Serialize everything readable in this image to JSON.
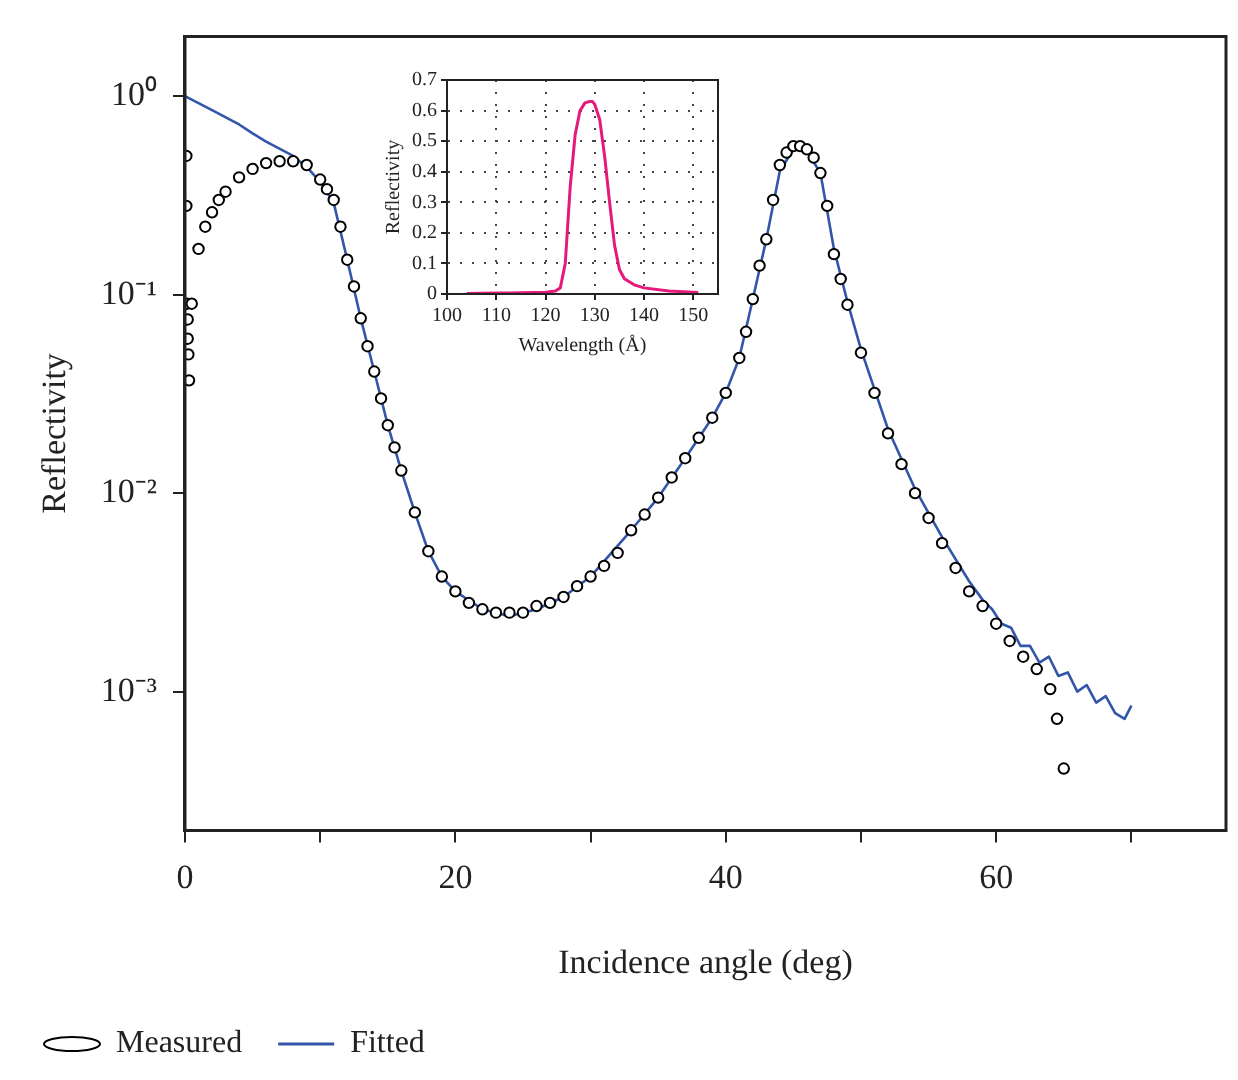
{
  "chart_data": [
    {
      "type": "line",
      "xlabel": "Incidence angle (deg)",
      "ylabel": "Reflectivity",
      "log": "y",
      "xlim": [
        0,
        77
      ],
      "ylim": [
        0.0002,
        2
      ],
      "xticks": [
        0,
        {
          "value": 10,
          "label": null
        },
        20,
        {
          "value": 30,
          "label": null
        },
        40,
        {
          "value": 50,
          "label": null
        },
        60,
        {
          "value": 70,
          "label": null
        }
      ],
      "yticks": [
        {
          "value": 1,
          "label": "10⁰"
        },
        {
          "value": 0.1,
          "label": "10⁻¹"
        },
        {
          "value": 0.01,
          "label": "10⁻²"
        },
        {
          "value": 0.001,
          "label": "10⁻³"
        }
      ],
      "grid": false,
      "legend": "bottom",
      "series": [
        {
          "name": "Measured",
          "type": "scatter",
          "marker": "circle",
          "color": "#000000",
          "x": [
            0.1,
            0.1,
            0.15,
            0.2,
            0.2,
            0.25,
            0.3,
            0.5,
            1,
            1.5,
            2,
            2.5,
            3,
            4,
            5,
            6,
            7,
            8,
            9,
            10,
            10.5,
            11,
            11.5,
            12,
            12.5,
            13,
            13.5,
            14,
            14.5,
            15,
            15.5,
            16,
            17,
            18,
            19,
            20,
            21,
            22,
            23,
            24,
            25,
            26,
            27,
            28,
            29,
            30,
            31,
            32,
            33,
            34,
            35,
            36,
            37,
            38,
            39,
            40,
            41,
            41.5,
            42,
            42.5,
            43,
            43.5,
            44,
            44.5,
            45,
            45.5,
            46,
            46.5,
            47,
            47.5,
            48,
            48.5,
            49,
            50,
            51,
            52,
            53,
            54,
            55,
            56,
            57,
            58,
            59,
            60,
            61,
            62,
            63,
            64,
            64.5,
            65
          ],
          "values": [
            0.5,
            0.28,
            0.09,
            0.075,
            0.06,
            0.05,
            0.037,
            0.09,
            0.17,
            0.22,
            0.26,
            0.3,
            0.33,
            0.39,
            0.43,
            0.46,
            0.47,
            0.47,
            0.45,
            0.38,
            0.34,
            0.3,
            0.22,
            0.15,
            0.11,
            0.076,
            0.055,
            0.041,
            0.03,
            0.022,
            0.017,
            0.013,
            0.008,
            0.0051,
            0.0038,
            0.0032,
            0.0028,
            0.0026,
            0.0025,
            0.0025,
            0.0025,
            0.0027,
            0.0028,
            0.003,
            0.0034,
            0.0038,
            0.0043,
            0.005,
            0.0065,
            0.0078,
            0.0095,
            0.012,
            0.015,
            0.019,
            0.024,
            0.032,
            0.048,
            0.065,
            0.095,
            0.14,
            0.19,
            0.3,
            0.45,
            0.52,
            0.56,
            0.56,
            0.54,
            0.49,
            0.41,
            0.28,
            0.16,
            0.12,
            0.089,
            0.051,
            0.032,
            0.02,
            0.014,
            0.01,
            0.0075,
            0.0056,
            0.0042,
            0.0032,
            0.0027,
            0.0022,
            0.0018,
            0.0015,
            0.0013,
            0.00103,
            0.00073,
            0.00041
          ]
        },
        {
          "name": "Fitted",
          "type": "line",
          "marker": "none",
          "color": "#3355aa",
          "x": [
            0,
            2,
            4,
            5,
            6,
            8,
            9,
            10,
            11,
            12,
            13,
            14,
            15,
            16,
            17,
            18,
            19,
            20,
            22,
            24,
            26,
            28,
            30,
            33,
            35,
            37,
            39,
            40,
            41,
            42,
            43,
            44,
            45,
            46,
            47,
            48,
            49,
            50,
            52,
            54,
            56,
            58,
            59,
            59.7,
            60.4,
            61.1,
            61.8,
            62.5,
            63.2,
            63.9,
            64.6,
            65.3,
            66,
            66.7,
            67.4,
            68.1,
            68.8,
            69.5,
            70
          ],
          "values": [
            1,
            0.85,
            0.72,
            0.65,
            0.59,
            0.5,
            0.44,
            0.37,
            0.29,
            0.15,
            0.076,
            0.041,
            0.022,
            0.013,
            0.008,
            0.0051,
            0.0038,
            0.0032,
            0.0026,
            0.0024,
            0.0026,
            0.003,
            0.0038,
            0.0065,
            0.0095,
            0.015,
            0.024,
            0.032,
            0.048,
            0.095,
            0.19,
            0.42,
            0.54,
            0.53,
            0.41,
            0.17,
            0.092,
            0.053,
            0.021,
            0.0105,
            0.006,
            0.0036,
            0.0029,
            0.0026,
            0.0022,
            0.0021,
            0.0017,
            0.0017,
            0.0014,
            0.0015,
            0.0012,
            0.00125,
            0.001,
            0.00108,
            0.00088,
            0.00095,
            0.00078,
            0.00073,
            0.00085
          ]
        }
      ]
    },
    {
      "type": "line",
      "xlabel": "Wavelength (Å)",
      "ylabel": "Reflectivity",
      "xlim": [
        100,
        155
      ],
      "ylim": [
        0,
        0.7
      ],
      "xticks": [
        100,
        110,
        120,
        130,
        140,
        150
      ],
      "yticks": [
        0,
        0.1,
        0.2,
        0.3,
        0.4,
        0.5,
        0.6,
        0.7
      ],
      "grid": true,
      "series": [
        {
          "color": "#e6197a",
          "x": [
            104,
            110,
            115,
            120,
            122,
            123,
            124,
            125,
            126,
            127,
            128,
            129,
            129.5,
            130,
            131,
            132,
            133,
            134,
            135,
            136,
            138,
            140,
            145,
            151
          ],
          "values": [
            0.002,
            0.003,
            0.004,
            0.006,
            0.01,
            0.02,
            0.1,
            0.35,
            0.52,
            0.6,
            0.625,
            0.63,
            0.63,
            0.62,
            0.57,
            0.45,
            0.3,
            0.16,
            0.08,
            0.05,
            0.03,
            0.02,
            0.01,
            0.005
          ]
        }
      ]
    }
  ]
}
